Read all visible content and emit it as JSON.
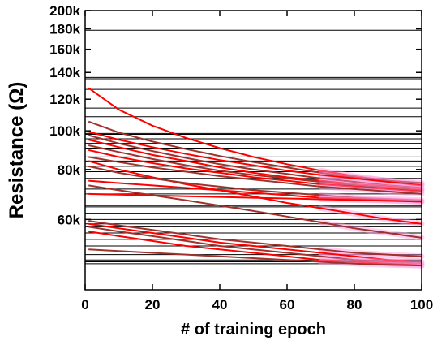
{
  "chart_data": {
    "type": "line",
    "xlabel": "# of training epoch",
    "ylabel": "Resistance (Ω)",
    "xlim": [
      0,
      100
    ],
    "ylim": [
      40000,
      200000
    ],
    "y_scale": "log",
    "x_ticks": [
      0,
      20,
      40,
      60,
      80,
      100
    ],
    "x_tick_labels": [
      "0",
      "20",
      "40",
      "60",
      "80",
      "100"
    ],
    "y_ticks": [
      60000,
      80000,
      100000,
      120000,
      140000,
      160000,
      180000,
      200000
    ],
    "y_tick_labels": [
      "60k",
      "80k",
      "100k",
      "120k",
      "140k",
      "160k",
      "180k",
      "200k"
    ],
    "grid": false,
    "legend": "none",
    "target_levels": [
      178500,
      136000,
      135000,
      127000,
      114000,
      108500,
      98500,
      98000,
      95500,
      93000,
      90500,
      88000,
      86000,
      84000,
      81500,
      79000,
      76000,
      74000,
      71500,
      69500,
      65000,
      64500,
      62000,
      60000,
      58500,
      57500,
      55500,
      53500,
      51500,
      49000,
      47500,
      47000,
      46500
    ],
    "target_color": "#000000",
    "curve_colors": [
      "#ff0000",
      "#a0322d"
    ],
    "highlight_color": "#ff99dd",
    "series": [
      {
        "x": [
          1,
          10,
          20,
          30,
          40,
          50,
          60,
          70,
          80,
          90,
          100
        ],
        "y": [
          128000,
          113000,
          103000,
          96000,
          90500,
          86000,
          82500,
          79500,
          77000,
          75000,
          73500
        ]
      },
      {
        "x": [
          1,
          10,
          20,
          30,
          40,
          50,
          60,
          70,
          80,
          90,
          100
        ],
        "y": [
          105500,
          99000,
          94000,
          90000,
          86500,
          83500,
          81000,
          78500,
          76500,
          75000,
          74000
        ]
      },
      {
        "x": [
          1,
          10,
          20,
          30,
          40,
          50,
          60,
          70,
          80,
          90,
          100
        ],
        "y": [
          99500,
          95000,
          91000,
          87500,
          84500,
          82000,
          79500,
          77500,
          76000,
          74500,
          73000
        ]
      },
      {
        "x": [
          1,
          10,
          20,
          30,
          40,
          50,
          60,
          70,
          80,
          90,
          100
        ],
        "y": [
          97500,
          93000,
          89000,
          85500,
          82500,
          80000,
          78000,
          76000,
          74500,
          73000,
          72000
        ]
      },
      {
        "x": [
          1,
          10,
          20,
          30,
          40,
          50,
          60,
          70,
          80,
          90,
          100
        ],
        "y": [
          95000,
          91000,
          87000,
          84000,
          81000,
          78500,
          76500,
          75000,
          73500,
          72500,
          71500
        ]
      },
      {
        "x": [
          1,
          10,
          20,
          30,
          40,
          50,
          60,
          70,
          80,
          90,
          100
        ],
        "y": [
          92000,
          88500,
          85000,
          82000,
          79500,
          77500,
          76000,
          74500,
          73000,
          72000,
          71000
        ]
      },
      {
        "x": [
          1,
          10,
          20,
          30,
          40,
          50,
          60,
          70,
          80,
          90,
          100
        ],
        "y": [
          89500,
          86000,
          83000,
          80500,
          78500,
          76500,
          75000,
          73500,
          72500,
          71500,
          70500
        ]
      },
      {
        "x": [
          1,
          10,
          20,
          30,
          40,
          50,
          60,
          70,
          80,
          90,
          100
        ],
        "y": [
          86000,
          83500,
          81000,
          79000,
          77000,
          75500,
          74000,
          72500,
          71500,
          70500,
          69500
        ]
      },
      {
        "x": [
          1,
          10,
          20,
          30,
          40,
          50,
          60,
          70,
          80,
          90,
          100
        ],
        "y": [
          84000,
          80000,
          76500,
          73500,
          71000,
          68500,
          66000,
          64000,
          62000,
          60000,
          58500
        ]
      },
      {
        "x": [
          1,
          10,
          20,
          30,
          40,
          50,
          60,
          70,
          80,
          90,
          100
        ],
        "y": [
          81500,
          78500,
          76000,
          74000,
          72500,
          71000,
          70000,
          69000,
          68000,
          67500,
          67000
        ]
      },
      {
        "x": [
          1,
          10,
          20,
          30,
          40,
          50,
          60,
          70,
          80,
          90,
          100
        ],
        "y": [
          75000,
          74000,
          73000,
          72000,
          71000,
          70000,
          69000,
          68000,
          67500,
          67000,
          66500
        ]
      },
      {
        "x": [
          1,
          10,
          20,
          30,
          40,
          50,
          60,
          70,
          80,
          90,
          100
        ],
        "y": [
          73000,
          71000,
          69000,
          67000,
          65000,
          63000,
          61000,
          59000,
          57000,
          55500,
          54000
        ]
      },
      {
        "x": [
          1,
          10,
          20,
          30,
          40,
          50,
          60,
          70,
          80,
          90,
          100
        ],
        "y": [
          69500,
          69200,
          68900,
          68600,
          68300,
          68000,
          67700,
          67400,
          67100,
          66800,
          66500
        ]
      },
      {
        "x": [
          1,
          10,
          20,
          30,
          40,
          50,
          60,
          70,
          80,
          90,
          100
        ],
        "y": [
          59500,
          58000,
          56500,
          55000,
          53500,
          52500,
          51500,
          50500,
          49500,
          49000,
          48500
        ]
      },
      {
        "x": [
          1,
          10,
          20,
          30,
          40,
          50,
          60,
          70,
          80,
          90,
          100
        ],
        "y": [
          58500,
          57000,
          55500,
          54000,
          52500,
          51500,
          50500,
          49500,
          48500,
          47500,
          47000
        ]
      },
      {
        "x": [
          1,
          10,
          20,
          30,
          40,
          50,
          60,
          70,
          80,
          90,
          100
        ],
        "y": [
          57500,
          56000,
          54500,
          53000,
          51500,
          50500,
          49500,
          48500,
          47500,
          47000,
          46500
        ]
      },
      {
        "x": [
          1,
          10,
          20,
          30,
          40,
          50,
          60,
          70,
          80,
          90,
          100
        ],
        "y": [
          56000,
          54500,
          53000,
          51500,
          50500,
          49500,
          48500,
          47500,
          47000,
          46500,
          46000
        ]
      },
      {
        "x": [
          1,
          10,
          20,
          30,
          40,
          50,
          60,
          70,
          80,
          90,
          100
        ],
        "y": [
          50500,
          50000,
          49500,
          49000,
          48500,
          48000,
          47500,
          47000,
          46500,
          46200,
          46000
        ]
      }
    ]
  }
}
